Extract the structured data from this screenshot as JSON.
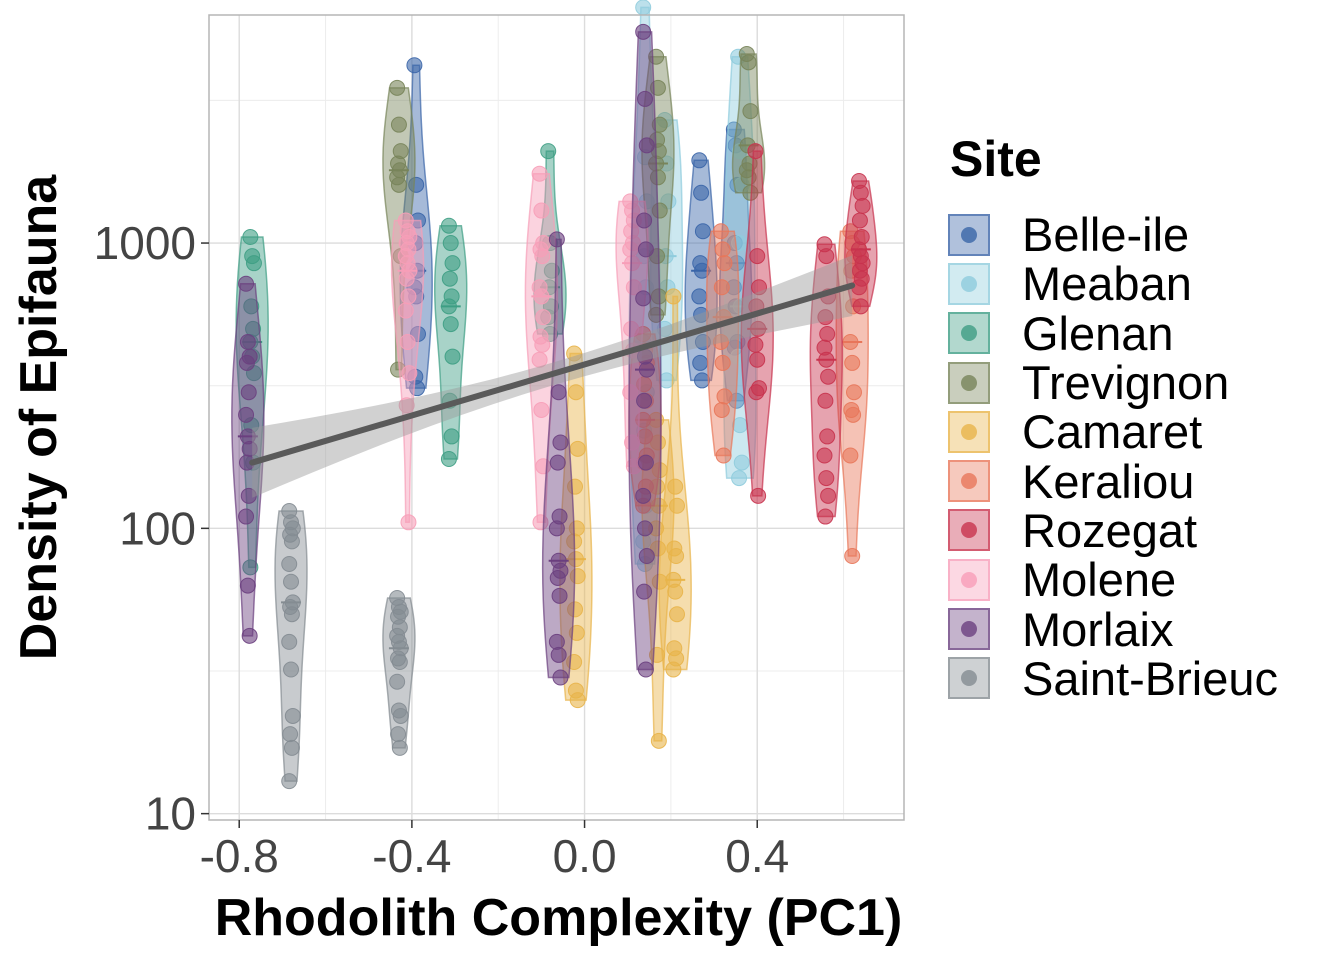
{
  "chart_data": {
    "type": "scatter",
    "xlabel": "Rhodolith Complexity (PC1)",
    "ylabel": "Density of Epifauna",
    "x_scale": "linear",
    "y_scale": "log10",
    "xlim": [
      -0.87,
      0.74
    ],
    "ylim": [
      9.5,
      6300
    ],
    "x_ticks": [
      -0.8,
      -0.4,
      0.0,
      0.4
    ],
    "x_tick_labels": [
      "-0.8",
      "-0.4",
      "0.0",
      "0.4"
    ],
    "y_ticks": [
      10,
      100,
      1000
    ],
    "y_tick_labels": [
      "10",
      "100",
      "1000"
    ],
    "grid": true,
    "legend_title": "Site",
    "legend_position": "right",
    "trend_line": {
      "x": [
        -0.77,
        0.62
      ],
      "y": [
        170,
        710
      ],
      "ci_lower": [
        128,
        555
      ],
      "ci_upper": [
        225,
        905
      ]
    },
    "series": [
      {
        "name": "Belle-ile",
        "color": "#3A65A8",
        "groups": [
          {
            "x": -0.39,
            "y": [
              4200,
              1600,
              1200,
              1000,
              800,
              700,
              650,
              480,
              340,
              310
            ]
          },
          {
            "x": 0.27,
            "y": [
              1950,
              1500,
              1100,
              850,
              800,
              650,
              560,
              450,
              380,
              330
            ]
          },
          {
            "x": 0.35,
            "y": [
              2500,
              2200,
              1600,
              1000,
              850,
              700,
              600,
              450,
              430,
              280
            ]
          }
        ]
      },
      {
        "name": "Meaban",
        "color": "#8FCCDD",
        "groups": [
          {
            "x": 0.14,
            "y": [
              6700,
              2000,
              1400,
              900,
              700,
              450,
              400,
              300,
              220,
              120,
              90,
              75
            ]
          },
          {
            "x": 0.19,
            "y": [
              2700,
              1900,
              1400,
              900,
              700,
              500,
              330
            ]
          },
          {
            "x": 0.36,
            "y": [
              4500,
              2100,
              1600,
              1000,
              600,
              400,
              230,
              170,
              150
            ]
          }
        ]
      },
      {
        "name": "Glenan",
        "color": "#3E9E84",
        "groups": [
          {
            "x": -0.77,
            "y": [
              1050,
              900,
              850,
              600,
              500,
              450,
              400,
              350,
              230,
              170,
              73
            ]
          },
          {
            "x": -0.31,
            "y": [
              1150,
              1000,
              850,
              750,
              650,
              600,
              520,
              400,
              280,
              210,
              175
            ]
          },
          {
            "x": -0.08,
            "y": [
              2100,
              1000,
              800,
              700,
              600,
              550,
              480
            ]
          }
        ]
      },
      {
        "name": "Trevignon",
        "color": "#78845A",
        "groups": [
          {
            "x": -0.43,
            "y": [
              3500,
              2600,
              2100,
              1900,
              1800,
              1700,
              1600,
              900,
              360
            ]
          },
          {
            "x": 0.17,
            "y": [
              4500,
              3500,
              2600,
              2300,
              2100,
              1900,
              1700,
              1300,
              900,
              650,
              560
            ]
          },
          {
            "x": 0.38,
            "y": [
              4600,
              4300,
              2900,
              2200,
              1900,
              1800,
              1700,
              1500
            ]
          }
        ]
      },
      {
        "name": "Camaret",
        "color": "#E8B44A",
        "groups": [
          {
            "x": -0.02,
            "y": [
              410,
              300,
              190,
              140,
              100,
              90,
              78,
              68,
              52,
              43,
              34,
              27,
              25
            ]
          },
          {
            "x": 0.17,
            "y": [
              240,
              200,
              160,
              140,
              120,
              100,
              85,
              65,
              36,
              18
            ]
          },
          {
            "x": 0.21,
            "y": [
              650,
              140,
              120,
              85,
              80,
              66,
              60,
              50,
              38,
              35,
              32
            ]
          }
        ]
      },
      {
        "name": "Keraliou",
        "color": "#E8775A",
        "groups": [
          {
            "x": 0.14,
            "y": [
              480,
              420,
              380,
              320,
              280,
              240,
              210,
              180,
              170,
              140,
              120
            ]
          },
          {
            "x": 0.32,
            "y": [
              1100,
              950,
              850,
              700,
              550,
              450,
              380,
              290,
              260,
              180
            ]
          },
          {
            "x": 0.62,
            "y": [
              1100,
              1000,
              900,
              800,
              600,
              450,
              380,
              300,
              260,
              250,
              180,
              80
            ]
          }
        ]
      },
      {
        "name": "Rozegat",
        "color": "#C8334E",
        "groups": [
          {
            "x": 0.4,
            "y": [
              2100,
              900,
              700,
              600,
              500,
              440,
              390,
              310,
              300,
              130
            ]
          },
          {
            "x": 0.56,
            "y": [
              990,
              900,
              650,
              550,
              480,
              430,
              390,
              340,
              280,
              210,
              180,
              150,
              130,
              110
            ]
          },
          {
            "x": 0.64,
            "y": [
              1650,
              1500,
              1350,
              1200,
              1050,
              950,
              900,
              850,
              800,
              750,
              700,
              600
            ]
          }
        ]
      },
      {
        "name": "Molene",
        "color": "#F79EB8",
        "groups": [
          {
            "x": -0.41,
            "y": [
              1200,
              1100,
              1050,
              1000,
              950,
              900,
              850,
              800,
              750,
              650,
              580,
              450,
              350,
              270,
              105
            ]
          },
          {
            "x": -0.1,
            "y": [
              1750,
              1300,
              1000,
              950,
              900,
              700,
              650,
              550,
              470,
              440,
              390,
              260,
              165,
              105
            ]
          },
          {
            "x": 0.11,
            "y": [
              1400,
              1300,
              1200,
              1100,
              1000,
              950,
              850,
              700,
              500,
              420,
              300,
              200,
              165
            ]
          }
        ]
      },
      {
        "name": "Morlaix",
        "color": "#6B407F",
        "groups": [
          {
            "x": -0.78,
            "y": [
              720,
              450,
              400,
              380,
              300,
              250,
              210,
              190,
              170,
              130,
              110,
              63,
              42
            ]
          },
          {
            "x": -0.06,
            "y": [
              1030,
              300,
              200,
              170,
              110,
              100,
              77,
              71,
              67,
              58,
              40,
              36,
              30
            ]
          },
          {
            "x": 0.14,
            "y": [
              5500,
              3200,
              2200,
              1200,
              950,
              640,
              400,
              360,
              280,
              170,
              130,
              100,
              80,
              60,
              32
            ]
          }
        ]
      },
      {
        "name": "Saint-Brieuc",
        "color": "#848C92",
        "groups": [
          {
            "x": -0.68,
            "y": [
              115,
              105,
              100,
              95,
              90,
              75,
              65,
              55,
              53,
              50,
              40,
              32,
              22,
              19,
              17,
              13
            ]
          },
          {
            "x": -0.43,
            "y": [
              57,
              53,
              51,
              49,
              45,
              42,
              40,
              38,
              35,
              34,
              29,
              23,
              22,
              19,
              17
            ]
          }
        ]
      }
    ]
  }
}
